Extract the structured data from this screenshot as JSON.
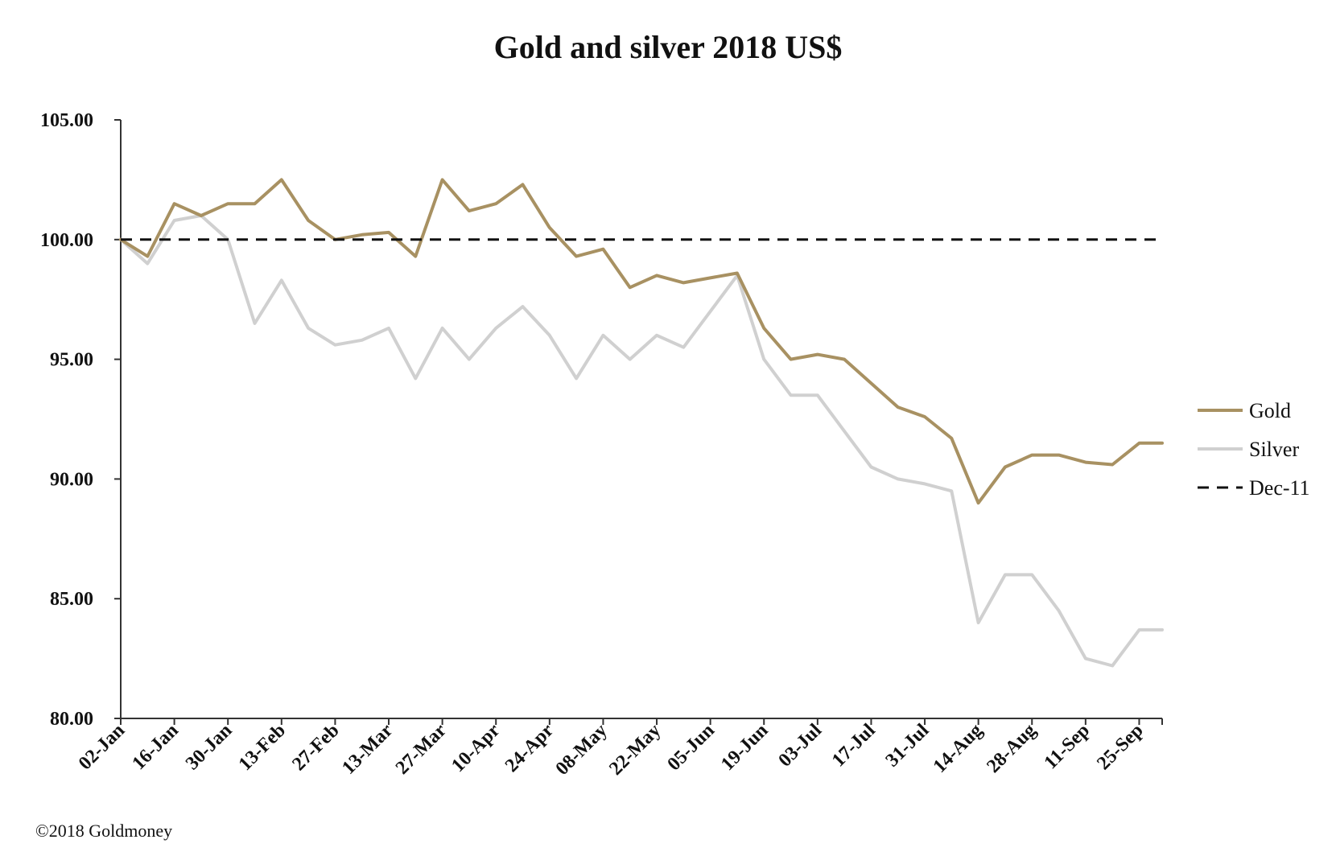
{
  "chart_data": {
    "type": "line",
    "title": "Gold and silver 2018  US$",
    "xlabel": "",
    "ylabel": "",
    "ylim": [
      80,
      105
    ],
    "yticks": [
      "80.00",
      "85.00",
      "90.00",
      "95.00",
      "100.00",
      "105.00"
    ],
    "xticks": [
      "02-Jan",
      "16-Jan",
      "30-Jan",
      "13-Feb",
      "27-Feb",
      "13-Mar",
      "27-Mar",
      "10-Apr",
      "24-Apr",
      "08-May",
      "22-May",
      "05-Jun",
      "19-Jun",
      "03-Jul",
      "17-Jul",
      "31-Jul",
      "14-Aug",
      "28-Aug",
      "11-Sep",
      "25-Sep"
    ],
    "x": [
      "2018-01-02",
      "2018-01-09",
      "2018-01-16",
      "2018-01-23",
      "2018-01-30",
      "2018-02-06",
      "2018-02-13",
      "2018-02-20",
      "2018-02-27",
      "2018-03-06",
      "2018-03-13",
      "2018-03-20",
      "2018-03-27",
      "2018-04-03",
      "2018-04-10",
      "2018-04-17",
      "2018-04-24",
      "2018-05-01",
      "2018-05-08",
      "2018-05-15",
      "2018-05-22",
      "2018-05-29",
      "2018-06-05",
      "2018-06-12",
      "2018-06-19",
      "2018-06-26",
      "2018-07-03",
      "2018-07-10",
      "2018-07-17",
      "2018-07-24",
      "2018-07-31",
      "2018-08-07",
      "2018-08-14",
      "2018-08-21",
      "2018-08-28",
      "2018-09-04",
      "2018-09-11",
      "2018-09-18",
      "2018-09-25",
      "2018-10-01"
    ],
    "series": [
      {
        "name": "Gold",
        "color": "#a89162",
        "values": [
          100.0,
          99.3,
          101.5,
          101.0,
          101.5,
          101.5,
          102.5,
          100.8,
          100.0,
          100.2,
          100.3,
          99.3,
          102.5,
          101.2,
          101.5,
          102.3,
          100.5,
          99.3,
          99.6,
          98.0,
          98.5,
          98.2,
          98.4,
          98.6,
          96.3,
          95.0,
          95.2,
          95.0,
          94.0,
          93.0,
          92.6,
          91.7,
          89.0,
          90.5,
          91.0,
          91.0,
          90.7,
          90.6,
          91.5,
          91.5
        ],
        "style": "solid"
      },
      {
        "name": "Silver",
        "color": "#d0d0d0",
        "values": [
          100.0,
          99.0,
          100.8,
          101.0,
          100.0,
          96.5,
          98.3,
          96.3,
          95.6,
          95.8,
          96.3,
          94.2,
          96.3,
          95.0,
          96.3,
          97.2,
          96.0,
          94.2,
          96.0,
          95.0,
          96.0,
          95.5,
          97.0,
          98.5,
          95.0,
          93.5,
          93.5,
          92.0,
          90.5,
          90.0,
          89.8,
          89.5,
          84.0,
          86.0,
          86.0,
          84.5,
          82.5,
          82.2,
          83.7,
          83.7
        ],
        "style": "solid"
      },
      {
        "name": "Dec-11",
        "color": "#111111",
        "values": [
          100,
          100,
          100,
          100,
          100,
          100,
          100,
          100,
          100,
          100,
          100,
          100,
          100,
          100,
          100,
          100,
          100,
          100,
          100,
          100,
          100,
          100,
          100,
          100,
          100,
          100,
          100,
          100,
          100,
          100,
          100,
          100,
          100,
          100,
          100,
          100,
          100,
          100,
          100,
          100
        ],
        "style": "dashed"
      }
    ],
    "legend_placement": "right",
    "grid": false
  },
  "footer": "©2018 Goldmoney"
}
